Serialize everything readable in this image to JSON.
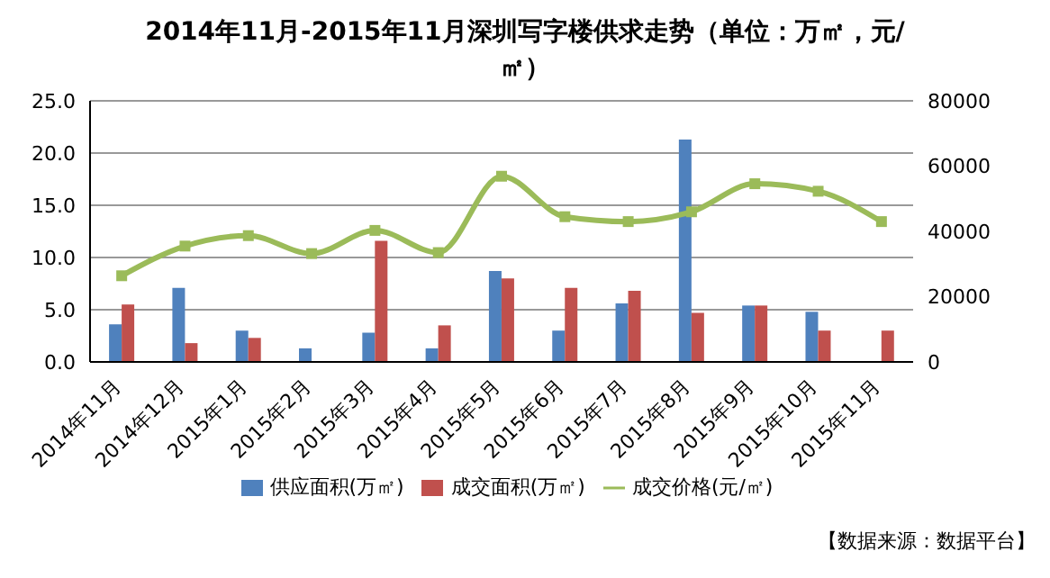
{
  "chart_data": {
    "type": "bar",
    "title": "2014年11月-2015年11月深圳写字楼供求走势（单位：万㎡，元/㎡）",
    "categories": [
      "2014年11月",
      "2014年12月",
      "2015年1月",
      "2015年2月",
      "2015年3月",
      "2015年4月",
      "2015年5月",
      "2015年6月",
      "2015年7月",
      "2015年8月",
      "2015年9月",
      "2015年10月",
      "2015年11月"
    ],
    "series": [
      {
        "name": "供应面积(万㎡)",
        "color": "#4f81bd",
        "values": [
          3.6,
          7.1,
          3.0,
          1.3,
          2.8,
          1.3,
          8.7,
          3.0,
          5.6,
          21.3,
          5.4,
          4.8,
          null
        ]
      },
      {
        "name": "成交面积(万㎡)",
        "color": "#c0504d",
        "values": [
          5.5,
          1.8,
          2.3,
          null,
          11.6,
          3.5,
          8.0,
          7.1,
          6.8,
          4.7,
          5.4,
          3.0,
          3.0
        ]
      },
      {
        "name": "成交价格(元/㎡)",
        "color": "#9bbb59",
        "type": "line",
        "axis": "y2",
        "marker": "square",
        "values": [
          26400,
          35500,
          38700,
          33200,
          40300,
          33500,
          56900,
          44500,
          43000,
          46000,
          54600,
          52300,
          43000
        ]
      }
    ],
    "ylim": [
      0,
      25
    ],
    "yticks": [
      {
        "value": 0,
        "label": "0.0"
      },
      {
        "value": 5,
        "label": "5.0"
      },
      {
        "value": 10,
        "label": "10.0"
      },
      {
        "value": 15,
        "label": "15.0"
      },
      {
        "value": 20,
        "label": "20.0"
      },
      {
        "value": 25,
        "label": "25.0"
      }
    ],
    "y2lim": [
      0,
      80000
    ],
    "y2ticks": [
      0,
      20000,
      40000,
      60000,
      80000
    ],
    "grid": "y",
    "legend": "bottom",
    "annotations": [
      "【数据来源：数据平台】"
    ]
  }
}
